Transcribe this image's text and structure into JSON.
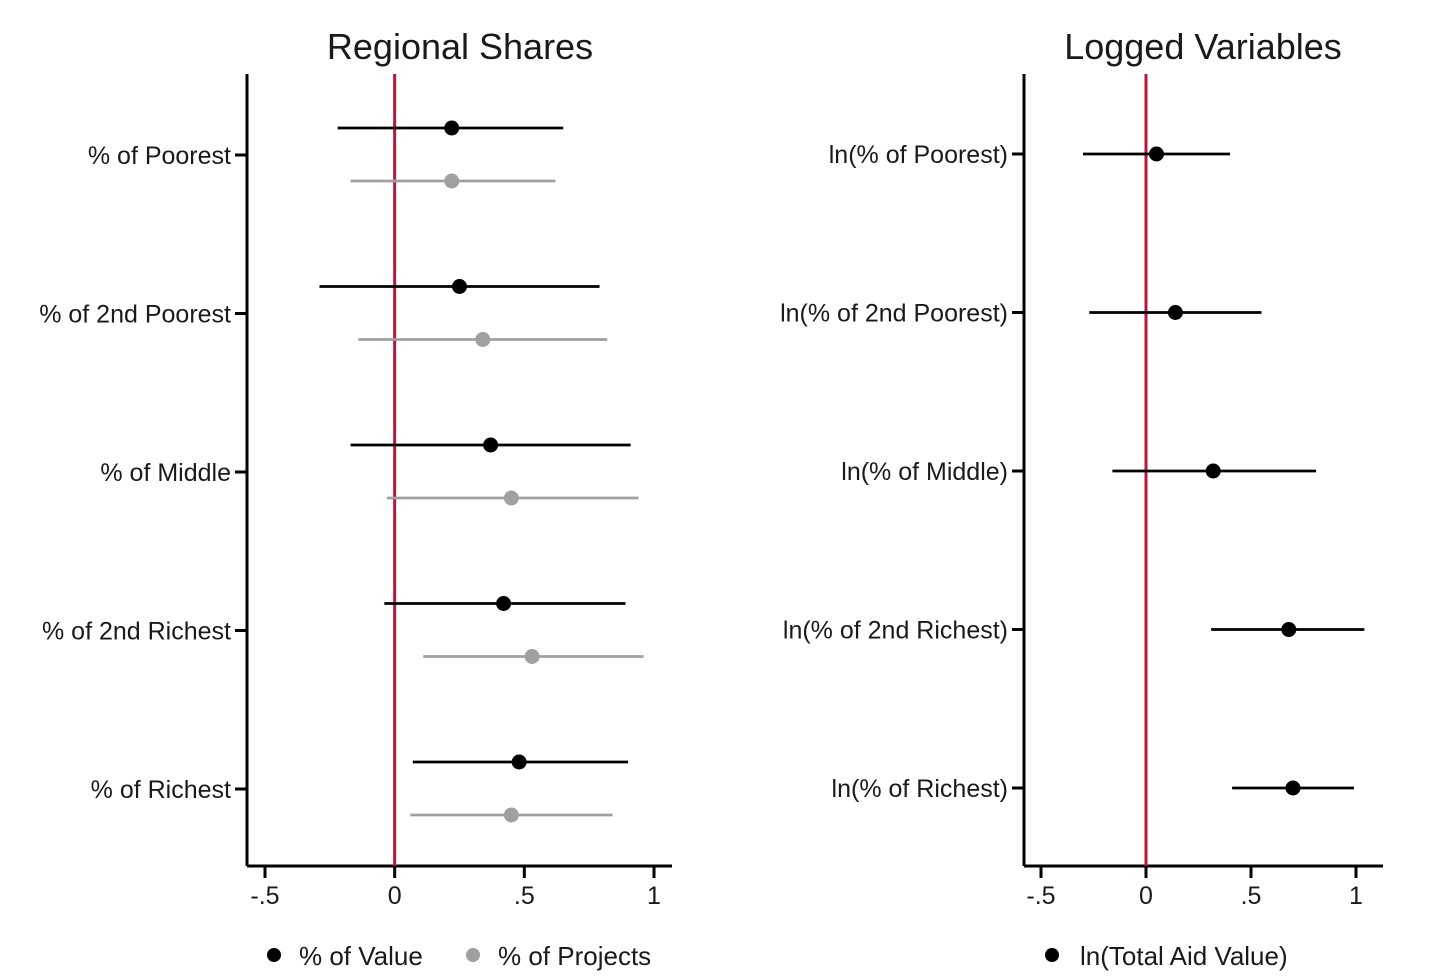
{
  "colors": {
    "value_series": "#000000",
    "projects_series": "#a0a0a0",
    "reference_line": "#b4193c",
    "axis": "#000000"
  },
  "chart_data": [
    {
      "type": "scatter",
      "subtype": "coefficient-plot",
      "title": "Regional Shares",
      "xlim": [
        -0.55,
        1.07
      ],
      "xticks": [
        -0.5,
        0,
        0.5,
        1
      ],
      "xtick_labels": [
        "-.5",
        "0",
        ".5",
        "1"
      ],
      "reference_line_x": 0,
      "categories": [
        "% of Poorest",
        "% of 2nd Poorest",
        "% of Middle",
        "% of 2nd Richest",
        "% of Richest"
      ],
      "series": [
        {
          "name": "% of Value",
          "color": "#000000",
          "estimates": [
            0.22,
            0.25,
            0.37,
            0.42,
            0.48
          ],
          "ci_low": [
            -0.22,
            -0.29,
            -0.17,
            -0.04,
            0.07
          ],
          "ci_high": [
            0.65,
            0.79,
            0.91,
            0.89,
            0.9
          ]
        },
        {
          "name": "% of Projects",
          "color": "#a0a0a0",
          "estimates": [
            0.22,
            0.34,
            0.45,
            0.53,
            0.45
          ],
          "ci_low": [
            -0.17,
            -0.14,
            -0.03,
            0.11,
            0.06
          ],
          "ci_high": [
            0.62,
            0.82,
            0.94,
            0.96,
            0.84
          ]
        }
      ],
      "legend": {
        "position": "bottom",
        "entries": [
          "% of Value",
          "% of Projects"
        ]
      }
    },
    {
      "type": "scatter",
      "subtype": "coefficient-plot",
      "title": "Logged Variables",
      "xlim": [
        -0.58,
        1.13
      ],
      "xticks": [
        -0.5,
        0,
        0.5,
        1
      ],
      "xtick_labels": [
        "-.5",
        "0",
        ".5",
        "1"
      ],
      "reference_line_x": 0,
      "categories": [
        "ln(% of Poorest)",
        "ln(% of 2nd Poorest)",
        "ln(% of Middle)",
        "ln(% of 2nd Richest)",
        "ln(% of Richest)"
      ],
      "series": [
        {
          "name": "ln(Total Aid Value)",
          "color": "#000000",
          "estimates": [
            0.05,
            0.14,
            0.32,
            0.68,
            0.7
          ],
          "ci_low": [
            -0.3,
            -0.27,
            -0.16,
            0.31,
            0.41
          ],
          "ci_high": [
            0.4,
            0.55,
            0.81,
            1.04,
            0.99
          ]
        }
      ],
      "legend": {
        "position": "bottom",
        "entries": [
          "ln(Total Aid Value)"
        ]
      }
    }
  ]
}
